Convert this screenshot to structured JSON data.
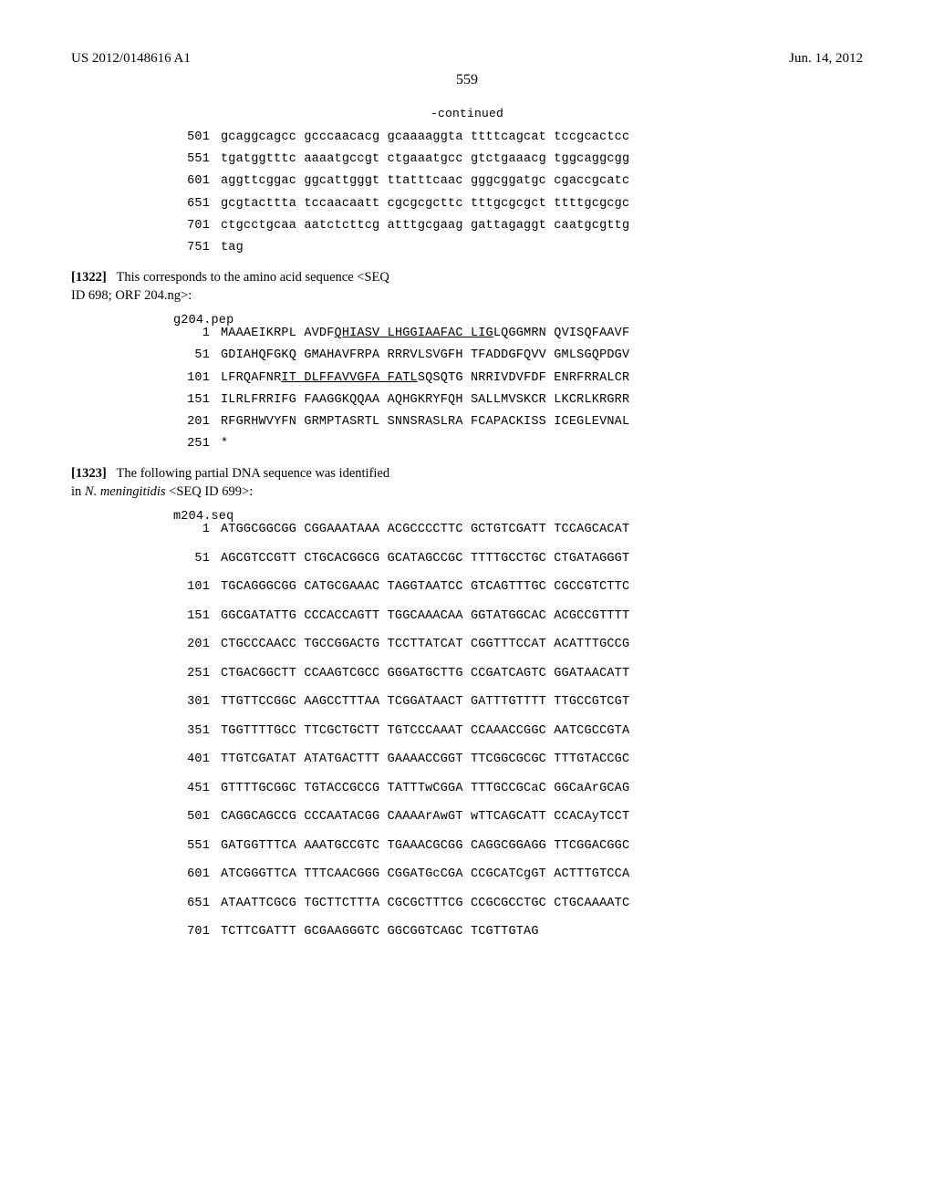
{
  "header": {
    "pub_number": "US 2012/0148616 A1",
    "pub_date": "Jun. 14, 2012",
    "page_number": "559"
  },
  "continued_label": "-continued",
  "seq1": {
    "rows": [
      {
        "n": "501",
        "s": "gcaggcagcc gcccaacacg gcaaaaggta ttttcagcat tccgcactcc"
      },
      {
        "n": "551",
        "s": "tgatggtttc aaaatgccgt ctgaaatgcc gtctgaaacg tggcaggcgg"
      },
      {
        "n": "601",
        "s": "aggttcggac ggcattgggt ttatttcaac gggcggatgc cgaccgcatc"
      },
      {
        "n": "651",
        "s": "gcgtacttta tccaacaatt cgcgcgcttc tttgcgcgct ttttgcgcgc"
      },
      {
        "n": "701",
        "s": "ctgcctgcaa aatctcttcg atttgcgaag gattagaggt caatgcgttg"
      },
      {
        "n": "751",
        "s": "tag"
      }
    ]
  },
  "para1": {
    "bracket": "[1322]",
    "text_a": "This corresponds to the amino acid sequence <SEQ",
    "text_b": "ID 698; ORF 204.ng>:"
  },
  "label_pep": "g204.pep",
  "seq2": {
    "rows": [
      {
        "n": "1",
        "pre": "MAAAEIKRPL AVDF",
        "u": "QHIASV LHGGIAAFAC LIG",
        "post": "LQGGMRN QVISQFAAVF"
      },
      {
        "n": "51",
        "pre": "GDIAHQFGKQ GMAHAVFRPA RRRVLSVGFH TFADDGFQVV GMLSGQPDGV",
        "u": "",
        "post": ""
      },
      {
        "n": "101",
        "pre": "LFRQAFNR",
        "u": "IT DLFFAVVGFA FATL",
        "post": "SQSQTG NRRIVDVFDF ENRFRRALCR"
      },
      {
        "n": "151",
        "pre": "ILRLFRRIFG FAAGGKQQAA AQHGKRYFQH SALLMVSKCR LKCRLKRGRR",
        "u": "",
        "post": ""
      },
      {
        "n": "201",
        "pre": "RFGRHWVYFN GRMPTASRTL SNNSRASLRA FCAPACKISS ICEGLEVNAL",
        "u": "",
        "post": ""
      },
      {
        "n": "251",
        "pre": "*",
        "u": "",
        "post": ""
      }
    ]
  },
  "para2": {
    "bracket": "[1323]",
    "text_a": "The following partial DNA sequence was identified",
    "text_b_pre": "in ",
    "text_b_ital": "N. meningitidis",
    "text_b_post": " <SEQ ID 699>:"
  },
  "label_seq": "m204.seq",
  "seq3": {
    "rows": [
      {
        "n": "1",
        "s": "ATGGCGGCGG CGGAAATAAA ACGCCCCTTC GCTGTCGATT TCCAGCACAT"
      },
      {
        "n": "51",
        "s": "AGCGTCCGTT CTGCACGGCG GCATAGCCGC TTTTGCCTGC CTGATAGGGT"
      },
      {
        "n": "101",
        "s": "TGCAGGGCGG CATGCGAAAC TAGGTAATCC GTCAGTTTGC CGCCGTCTTC"
      },
      {
        "n": "151",
        "s": "GGCGATATTG CCCACCAGTT TGGCAAACAA GGTATGGCAC ACGCCGTTTT"
      },
      {
        "n": "201",
        "s": "CTGCCCAACC TGCCGGACTG TCCTTATCAT CGGTTTCCAT ACATTTGCCG"
      },
      {
        "n": "251",
        "s": "CTGACGGCTT CCAAGTCGCC GGGATGCTTG CCGATCAGTC GGATAACATT"
      },
      {
        "n": "301",
        "s": "TTGTTCCGGC AAGCCTTTAA TCGGATAACT GATTTGTTTT TTGCCGTCGT"
      },
      {
        "n": "351",
        "s": "TGGTTTTGCC TTCGCTGCTT TGTCCCAAAT CCAAACCGGC AATCGCCGTA"
      },
      {
        "n": "401",
        "s": "TTGTCGATAT ATATGACTTT GAAAACCGGT TTCGGCGCGC TTTGTACCGC"
      },
      {
        "n": "451",
        "s": "GTTTTGCGGC TGTACCGCCG TATTTwCGGA TTTGCCGCaC GGCaArGCAG"
      },
      {
        "n": "501",
        "s": "CAGGCAGCCG CCCAATACGG CAAAArAwGT wTTCAGCATT CCACAyTCCT"
      },
      {
        "n": "551",
        "s": "GATGGTTTCA AAATGCCGTC TGAAACGCGG CAGGCGGAGG TTCGGACGGC"
      },
      {
        "n": "601",
        "s": "ATCGGGTTCA TTTCAACGGG CGGATGcCGA CCGCATCgGT ACTTTGTCCA"
      },
      {
        "n": "651",
        "s": "ATAATTCGCG TGCTTCTTTA CGCGCTTTCG CCGCGCCTGC CTGCAAAATC"
      },
      {
        "n": "701",
        "s": "TCTTCGATTT GCGAAGGGTC GGCGGTCAGC TCGTTGTAG"
      }
    ]
  }
}
